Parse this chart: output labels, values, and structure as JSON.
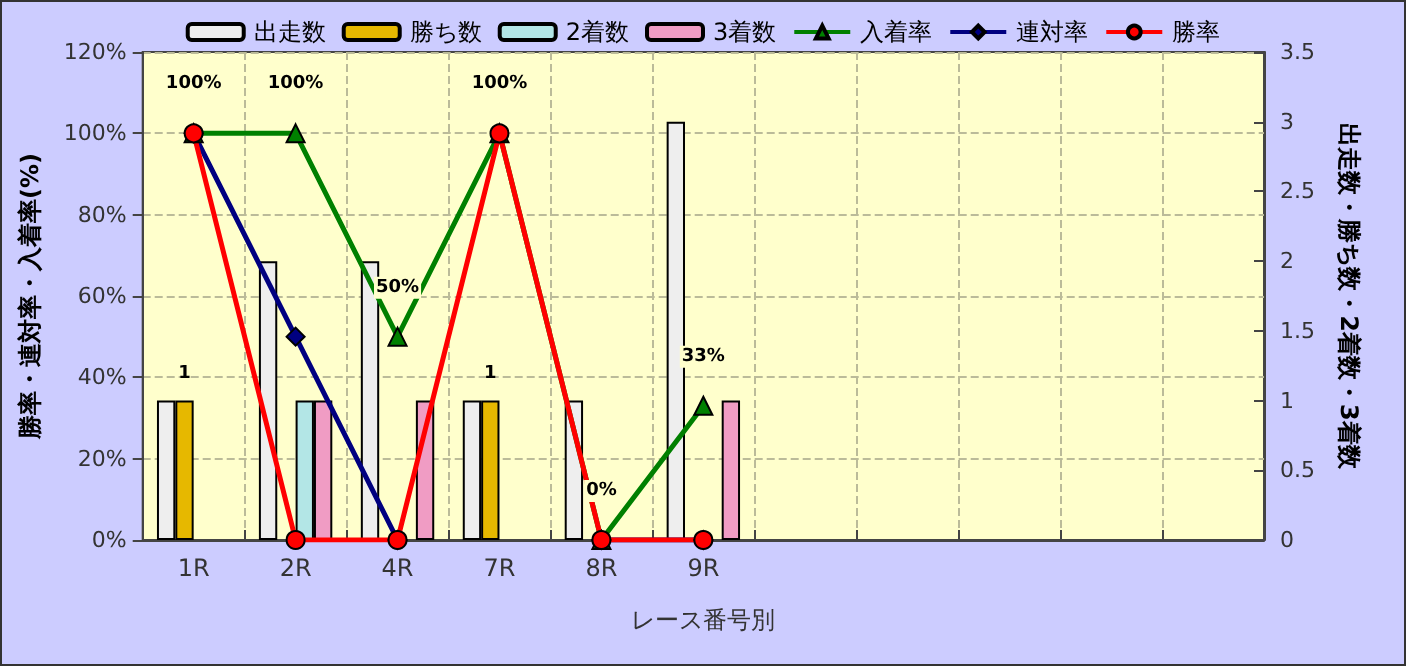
{
  "chart_data": {
    "type": "bar",
    "xlabel": "レース番号別",
    "ylabel": "勝率・連対率・入着率(%)",
    "y2label": "出走数・勝ち数・2着数・3着数",
    "categories": [
      "1R",
      "2R",
      "4R",
      "7R",
      "8R",
      "9R",
      null,
      null,
      null,
      null,
      null
    ],
    "series": [
      {
        "name": "出走数",
        "axis": "y2",
        "color": "#eeeeee",
        "values": [
          1,
          2,
          2,
          1,
          1,
          3,
          null,
          null,
          null,
          null,
          null
        ]
      },
      {
        "name": "勝ち数",
        "axis": "y2",
        "color": "#e6b800",
        "values": [
          1,
          null,
          null,
          1,
          null,
          null,
          null,
          null,
          null,
          null,
          null
        ],
        "value_labels": [
          "1",
          null,
          null,
          "1",
          null,
          null,
          null,
          null,
          null,
          null,
          null
        ]
      },
      {
        "name": "2着数",
        "axis": "y2",
        "color": "#b3e6e6",
        "values": [
          null,
          1,
          null,
          null,
          null,
          null,
          null,
          null,
          null,
          null,
          null
        ]
      },
      {
        "name": "3着数",
        "axis": "y2",
        "color": "#f09cc4",
        "values": [
          null,
          1,
          1,
          null,
          null,
          1,
          null,
          null,
          null,
          null,
          null
        ]
      },
      {
        "name": "入着率",
        "type": "line",
        "color": "#008000",
        "marker": "triangle",
        "values": [
          100,
          100,
          50,
          100,
          0,
          33,
          null,
          null,
          null,
          null,
          null
        ],
        "value_labels": [
          "100%",
          "100%",
          "50%",
          "100%",
          "0%",
          "33%",
          null,
          null,
          null,
          null,
          null
        ]
      },
      {
        "name": "連対率",
        "type": "line",
        "color": "#000080",
        "marker": "diamond",
        "values": [
          100,
          50,
          0,
          null,
          0,
          0,
          null,
          null,
          null,
          null,
          null
        ]
      },
      {
        "name": "勝率",
        "type": "line",
        "color": "#ff0000",
        "marker": "circle",
        "values": [
          100,
          0,
          0,
          100,
          0,
          0,
          null,
          null,
          null,
          null,
          null
        ]
      }
    ],
    "ylim": [
      0,
      120
    ],
    "yticks": [
      {
        "value": 0,
        "label": "0%"
      },
      {
        "value": 20,
        "label": "20%"
      },
      {
        "value": 40,
        "label": "40%"
      },
      {
        "value": 60,
        "label": "60%"
      },
      {
        "value": 80,
        "label": "80%"
      },
      {
        "value": 100,
        "label": "100%"
      },
      {
        "value": 120,
        "label": "120%"
      }
    ],
    "y2lim": [
      0,
      3.5
    ],
    "y2ticks": [
      0,
      0.5,
      1,
      1.5,
      2,
      2.5,
      3,
      3.5
    ],
    "grid": true,
    "legend": "top"
  }
}
